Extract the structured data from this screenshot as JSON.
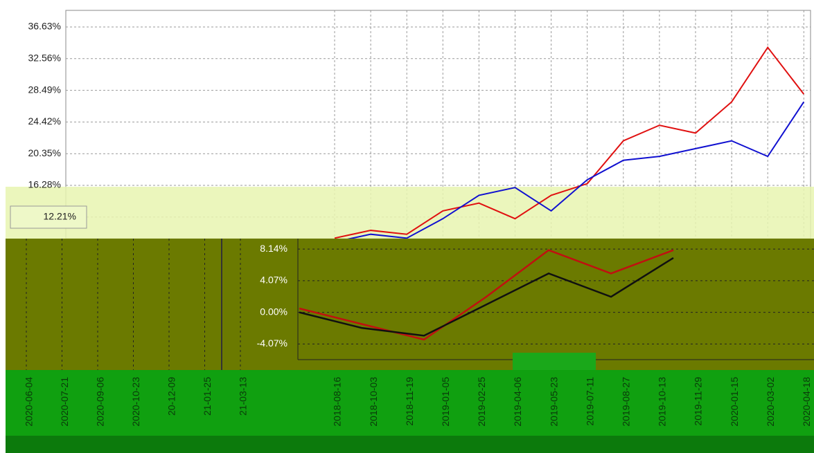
{
  "chart_data": [
    {
      "type": "line",
      "categories": [
        "2018-08-16",
        "2018-10-03",
        "2018-11-19",
        "2019-01-05",
        "2019-02-25",
        "2019-04-06",
        "2019-05-23",
        "2019-07-11",
        "2019-08-27",
        "2019-10-13",
        "2019-11-29",
        "2020-01-15",
        "2020-03-02",
        "2020-04-18"
      ],
      "series": [
        {
          "color": "#e01010",
          "values": [
            9.5,
            10.5,
            10,
            13,
            14,
            12,
            15,
            16.5,
            22,
            24,
            23,
            27,
            34,
            28
          ]
        },
        {
          "color": "#1010d0",
          "values": [
            9,
            10,
            9.5,
            12,
            15,
            16,
            13,
            17,
            19.5,
            20,
            21,
            22,
            20,
            27
          ]
        }
      ],
      "ylim": [
        9.44,
        38.76
      ],
      "yticks": [
        {
          "value": 36.63,
          "label": "36.63%"
        },
        {
          "value": 32.56,
          "label": "32.56%"
        },
        {
          "value": 28.49,
          "label": "28.49%"
        },
        {
          "value": 24.42,
          "label": "24.42%"
        },
        {
          "value": 20.35,
          "label": "20.35%"
        },
        {
          "value": 16.28,
          "label": "16.28%"
        },
        {
          "value": 12.21,
          "label": "12.21%"
        }
      ],
      "grid": true
    },
    {
      "type": "line",
      "categories": [
        "2020-06-04",
        "2020-07-21",
        "2020-09-06",
        "2020-10-23",
        "20-12-09",
        "21-01-25",
        "21-03-13"
      ],
      "series": [
        {
          "color": "#c01010",
          "values": [
            0.5,
            -1.5,
            -3.5,
            2,
            8,
            5,
            8
          ]
        },
        {
          "color": "#101010",
          "values": [
            0,
            -2,
            -3,
            1,
            5,
            2,
            7
          ]
        }
      ],
      "ylim": [
        -6.08,
        9.48
      ],
      "yticks": [
        {
          "value": 8.14,
          "label": "8.14%"
        },
        {
          "value": 4.07,
          "label": "4.07%"
        },
        {
          "value": 0,
          "label": "0.00%"
        },
        {
          "value": -4.07,
          "label": "-4.07%"
        }
      ],
      "grid": true
    }
  ]
}
